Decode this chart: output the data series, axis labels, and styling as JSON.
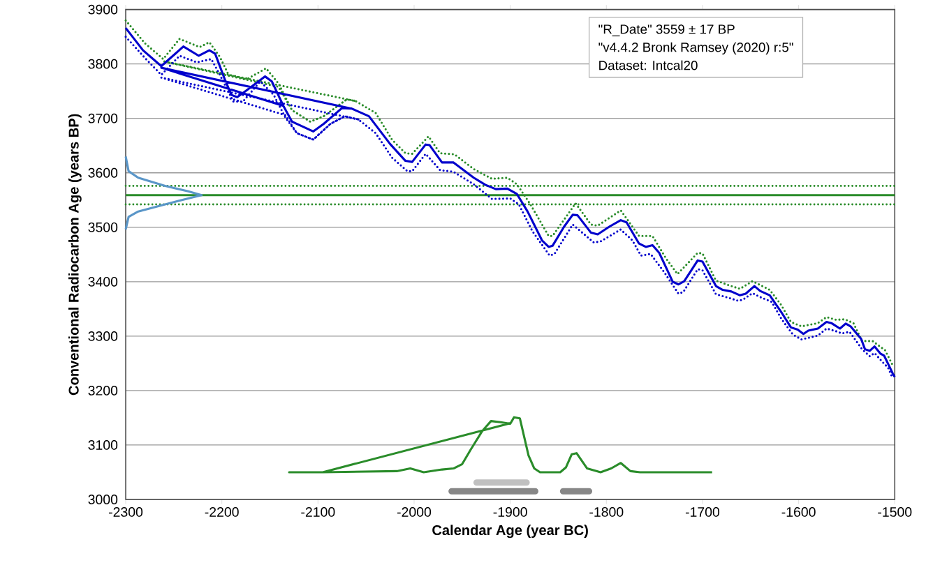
{
  "chart_data": {
    "type": "line",
    "xlabel": "Calendar Age (year BC)",
    "ylabel": "Conventional Radiocarbon Age (years BP)",
    "xlim": [
      -2300,
      -1500
    ],
    "ylim": [
      3000,
      3900
    ],
    "xticks": [
      -2300,
      -2200,
      -2100,
      -2000,
      -1900,
      -1800,
      -1700,
      -1600,
      -1500
    ],
    "yticks": [
      3000,
      3100,
      3200,
      3300,
      3400,
      3500,
      3600,
      3700,
      3800,
      3900
    ],
    "grid": "y",
    "annotations": [
      "\"R_Date\" 3559 ± 17 BP",
      "\"v4.4.2 Bronk Ramsey (2020) r:5\"",
      "Dataset: Intcal20"
    ],
    "ref_lines": [
      {
        "axis": "y",
        "value": 3559,
        "color": "#2a8c2a",
        "line_style": "solid"
      },
      {
        "axis": "y",
        "value": 3576,
        "color": "#2a8c2a",
        "line_style": "dotted"
      },
      {
        "axis": "y",
        "value": 3542,
        "color": "#2a8c2a",
        "line_style": "dotted"
      }
    ],
    "series": [
      {
        "color": "#2a8c2a",
        "line_style": "dotted",
        "x": [
          -2300,
          -2280,
          -2261,
          -2244,
          -2223,
          -2213,
          -2202,
          -2193,
          -2174,
          -2154,
          -2141,
          -2127,
          -2108,
          -2094,
          -2070,
          -2061,
          -2261,
          -2141,
          -2127,
          -2108,
          -2094,
          -2070,
          -2061,
          -2040,
          -2023,
          -2009,
          -2002,
          -1985,
          -1973,
          -1958,
          -1938,
          -1919,
          -1903,
          -1893,
          -1879,
          -1860,
          -1856,
          -1832,
          -1816,
          -1809,
          -1785,
          -1766,
          -1752,
          -1738,
          -1726,
          -1705,
          -1700,
          -1686,
          -1670,
          -1661,
          -1648,
          -1630,
          -1618,
          -1608,
          -1597,
          -1580,
          -1571,
          -1561,
          -1552,
          -1543,
          -1534,
          -1523,
          -1510,
          -1502
        ],
        "values": [
          3880,
          3838,
          3809,
          3846,
          3831,
          3840,
          3813,
          3780,
          3772,
          3792,
          3764,
          3715,
          3694,
          3704,
          3735,
          3732,
          3805,
          3758,
          3715,
          3694,
          3704,
          3735,
          3732,
          3710,
          3661,
          3636,
          3635,
          3667,
          3636,
          3634,
          3607,
          3589,
          3591,
          3579,
          3542,
          3484,
          3484,
          3544,
          3505,
          3503,
          3531,
          3484,
          3484,
          3443,
          3414,
          3453,
          3452,
          3402,
          3392,
          3387,
          3401,
          3385,
          3357,
          3326,
          3318,
          3324,
          3335,
          3330,
          3331,
          3324,
          3291,
          3291,
          3274,
          3246
        ]
      },
      {
        "color": "#0000cc",
        "line_style": "dotted",
        "x": [
          -2300,
          -2280,
          -2263,
          -2244,
          -2226,
          -2211,
          -2202,
          -2188,
          -2178,
          -2160,
          -2146,
          -2134,
          -2122,
          -2105,
          -2087,
          -2072,
          -2058,
          -2263,
          -2134,
          -2122,
          -2105,
          -2087,
          -2072,
          -2058,
          -2040,
          -2023,
          -2007,
          -2002,
          -1988,
          -1973,
          -1959,
          -1938,
          -1919,
          -1900,
          -1891,
          -1877,
          -1859,
          -1854,
          -1835,
          -1813,
          -1806,
          -1785,
          -1773,
          -1764,
          -1754,
          -1740,
          -1725,
          -1720,
          -1705,
          -1700,
          -1686,
          -1674,
          -1663,
          -1658,
          -1648,
          -1639,
          -1628,
          -1618,
          -1606,
          -1597,
          -1580,
          -1571,
          -1561,
          -1555,
          -1547,
          -1534,
          -1526,
          -1521,
          -1514,
          -1507,
          -1502
        ],
        "values": [
          3850,
          3811,
          3780,
          3815,
          3803,
          3809,
          3780,
          3731,
          3731,
          3768,
          3743,
          3702,
          3673,
          3661,
          3690,
          3704,
          3698,
          3775,
          3706,
          3673,
          3661,
          3690,
          3704,
          3698,
          3673,
          3628,
          3603,
          3603,
          3635,
          3605,
          3602,
          3579,
          3552,
          3553,
          3542,
          3493,
          3448,
          3451,
          3505,
          3472,
          3474,
          3496,
          3476,
          3448,
          3451,
          3418,
          3378,
          3381,
          3423,
          3421,
          3377,
          3371,
          3365,
          3367,
          3379,
          3371,
          3363,
          3332,
          3303,
          3294,
          3301,
          3314,
          3309,
          3305,
          3308,
          3276,
          3263,
          3269,
          3255,
          3242,
          3222
        ]
      },
      {
        "color": "#0000cc",
        "line_style": "solid",
        "x": [
          -2300,
          -2282,
          -2263,
          -2240,
          -2224,
          -2213,
          -2207,
          -2197,
          -2190,
          -2184,
          -2174,
          -2155,
          -2148,
          -2136,
          -2127,
          -2105,
          -2094,
          -2075,
          -2065,
          -2263,
          -2136,
          -2127,
          -2105,
          -2094,
          -2075,
          -2065,
          -2047,
          -2025,
          -2009,
          -2002,
          -1988,
          -1984,
          -1971,
          -1959,
          -1938,
          -1926,
          -1915,
          -1903,
          -1893,
          -1882,
          -1867,
          -1860,
          -1856,
          -1844,
          -1835,
          -1830,
          -1816,
          -1809,
          -1797,
          -1785,
          -1779,
          -1766,
          -1759,
          -1752,
          -1745,
          -1731,
          -1725,
          -1719,
          -1705,
          -1700,
          -1686,
          -1679,
          -1670,
          -1661,
          -1655,
          -1646,
          -1640,
          -1630,
          -1618,
          -1608,
          -1601,
          -1595,
          -1590,
          -1580,
          -1571,
          -1566,
          -1557,
          -1551,
          -1546,
          -1535,
          -1531,
          -1526,
          -1521,
          -1515,
          -1511,
          -1502,
          -1500
        ],
        "values": [
          3866,
          3825,
          3796,
          3832,
          3815,
          3825,
          3819,
          3772,
          3743,
          3739,
          3752,
          3777,
          3768,
          3723,
          3694,
          3676,
          3690,
          3719,
          3718,
          3793,
          3723,
          3694,
          3676,
          3690,
          3719,
          3718,
          3704,
          3653,
          3622,
          3620,
          3652,
          3651,
          3619,
          3619,
          3591,
          3578,
          3570,
          3571,
          3561,
          3529,
          3476,
          3464,
          3466,
          3501,
          3523,
          3522,
          3490,
          3487,
          3501,
          3513,
          3509,
          3470,
          3464,
          3467,
          3453,
          3400,
          3395,
          3401,
          3439,
          3437,
          3392,
          3385,
          3382,
          3375,
          3378,
          3392,
          3383,
          3375,
          3344,
          3316,
          3312,
          3304,
          3310,
          3314,
          3326,
          3324,
          3314,
          3323,
          3318,
          3295,
          3276,
          3273,
          3281,
          3268,
          3264,
          3231,
          3225
        ]
      },
      {
        "color": "#5a96c8",
        "line_style": "solid",
        "x": [
          -2300,
          -2297,
          -2287,
          -2259,
          -2235,
          -2221,
          -2235,
          -2259,
          -2287,
          -2297,
          -2300
        ],
        "values": [
          3630,
          3603,
          3591,
          3576,
          3566,
          3559,
          3553,
          3542,
          3529,
          3519,
          3496
        ]
      },
      {
        "color": "#2a8c2a",
        "line_style": "solid",
        "x": [
          -1900,
          -2095,
          -2130,
          -2095,
          -2018,
          -2004,
          -1990,
          -1971,
          -1959,
          -1950,
          -1941,
          -1929,
          -1920,
          -1910,
          -1900,
          -1896,
          -1890,
          -1881,
          -1875,
          -1869,
          -1848,
          -1842,
          -1836,
          -1831,
          -1820,
          -1806,
          -1795,
          -1785,
          -1775,
          -1765,
          -1690
        ],
        "values": [
          3140,
          3050,
          3050,
          3050,
          3052,
          3057,
          3050,
          3055,
          3057,
          3065,
          3092,
          3126,
          3144,
          3142,
          3139,
          3151,
          3149,
          3081,
          3057,
          3050,
          3050,
          3059,
          3083,
          3085,
          3057,
          3050,
          3057,
          3067,
          3052,
          3050,
          3050
        ]
      },
      {
        "color": "#c0c0c0",
        "line_style": "solid",
        "x": [
          -1935,
          -1883
        ],
        "values": [
          3031,
          3031
        ]
      },
      {
        "color": "#878787",
        "line_style": "solid",
        "x": [
          -1961,
          -1874,
          -1860,
          -1845,
          -1818
        ],
        "values": [
          3015,
          3015,
          null,
          3015,
          3015
        ]
      }
    ]
  }
}
